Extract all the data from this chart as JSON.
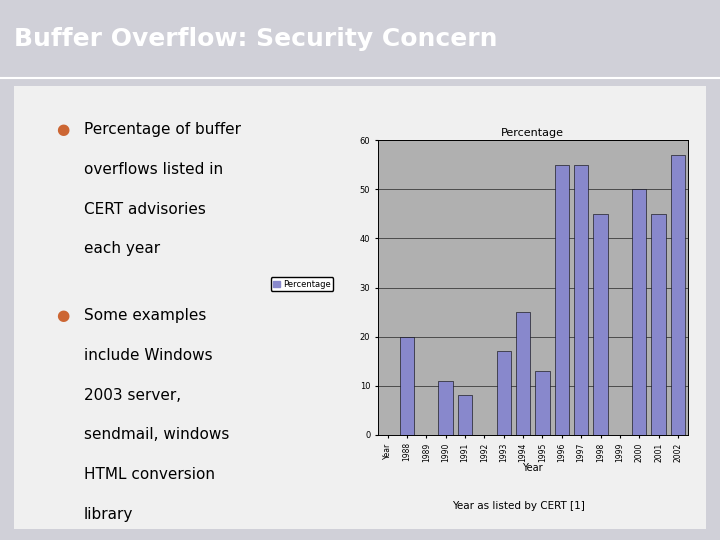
{
  "title": "Buffer Overflow: Security Concern",
  "title_bg_color": "#6666bb",
  "title_text_color": "#ffffff",
  "slide_bg_color": "#e8e8f0",
  "slide_border_color": "#7799aa",
  "chart_outer_bg_color": "#c8eef8",
  "plot_bg_color": "#b0b0b0",
  "bar_color": "#8888cc",
  "bar_edge_color": "#000000",
  "chart_title": "Percentage",
  "xlabel": "Year",
  "caption": "Year as listed by CERT [1]",
  "years": [
    "Year",
    "1988",
    "1989",
    "1990",
    "1991",
    "1992",
    "1993",
    "1994",
    "1995",
    "1996",
    "1997",
    "1998",
    "1999",
    "2000",
    "2001",
    "2002"
  ],
  "values": [
    0,
    20,
    0,
    11,
    8,
    0,
    17,
    25,
    13,
    55,
    55,
    45,
    0,
    50,
    45,
    57
  ],
  "ylim": [
    0,
    60
  ],
  "yticks": [
    0,
    10,
    20,
    30,
    40,
    50,
    60
  ],
  "legend_label": "Percentage",
  "bullet1_lines": [
    "Percentage of buffer",
    "overflows listed in",
    "CERT advisories",
    "each year"
  ],
  "bullet2_lines": [
    "Some examples",
    "include Windows",
    "2003 server,",
    "sendmail, windows",
    "HTML conversion",
    "library"
  ],
  "bullet_color": "#cc6633",
  "text_color": "#000000"
}
